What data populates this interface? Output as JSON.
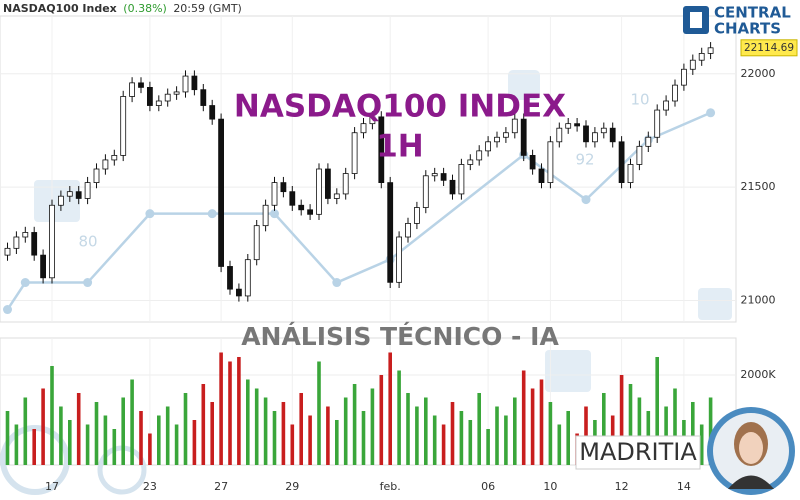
{
  "header": {
    "title": "NASDAQ100 Index",
    "change": "(0.38%)",
    "time": "20:59 (GMT)"
  },
  "brand": {
    "line1": "CENTRAL",
    "line2": "CHARTS"
  },
  "watermark": {
    "title": "NASDAQ100 INDEX",
    "timeframe": "1H",
    "subtitle": "ANÁLISIS TÉCNICO - IA"
  },
  "author": "MADRITIA",
  "chart_data": {
    "type": "candlestick",
    "categories": [
      null,
      null,
      null,
      null,
      null,
      "17",
      null,
      null,
      null,
      null,
      null,
      null,
      null,
      null,
      null,
      null,
      "23",
      null,
      null,
      null,
      null,
      null,
      null,
      null,
      "27",
      null,
      null,
      null,
      null,
      null,
      null,
      null,
      "29",
      null,
      null,
      null,
      null,
      null,
      null,
      null,
      null,
      null,
      null,
      "feb.",
      null,
      null,
      null,
      null,
      null,
      null,
      null,
      null,
      null,
      null,
      "06",
      null,
      null,
      null,
      null,
      null,
      null,
      "10",
      null,
      null,
      null,
      null,
      null,
      null,
      null,
      "12",
      null,
      null,
      null,
      null,
      null,
      null,
      "14",
      null,
      null,
      null
    ],
    "open": [
      21200,
      21230,
      21280,
      21300,
      21200,
      21100,
      21420,
      21460,
      21480,
      21450,
      21520,
      21580,
      21620,
      21640,
      21900,
      21960,
      21940,
      21860,
      21880,
      21910,
      21920,
      21990,
      21930,
      21860,
      21800,
      21150,
      21050,
      21020,
      21180,
      21330,
      21420,
      21520,
      21480,
      21420,
      21400,
      21380,
      21580,
      21450,
      21470,
      21560,
      21740,
      21780,
      21810,
      21520,
      21080,
      21280,
      21340,
      21410,
      21550,
      21560,
      21530,
      21470,
      21600,
      21620,
      21660,
      21700,
      21720,
      21740,
      21800,
      21640,
      21580,
      21520,
      21700,
      21760,
      21780,
      21770,
      21700,
      21740,
      21760,
      21700,
      21520,
      21600,
      21680,
      21720,
      21840,
      21880,
      21950,
      22020,
      22060,
      22090
    ],
    "high": [
      21255,
      21305,
      21325,
      21325,
      21225,
      21445,
      21485,
      21505,
      21505,
      21545,
      21605,
      21645,
      21665,
      21925,
      21985,
      21985,
      21965,
      21905,
      21935,
      21945,
      22015,
      22015,
      21955,
      21885,
      21825,
      21175,
      21075,
      21205,
      21355,
      21445,
      21545,
      21545,
      21505,
      21445,
      21425,
      21605,
      21605,
      21495,
      21585,
      21765,
      21805,
      21835,
      21835,
      21545,
      21305,
      21365,
      21435,
      21575,
      21585,
      21585,
      21555,
      21625,
      21645,
      21685,
      21725,
      21745,
      21765,
      21825,
      21825,
      21665,
      21605,
      21725,
      21785,
      21805,
      21805,
      21795,
      21765,
      21785,
      21785,
      21725,
      21625,
      21705,
      21745,
      21865,
      21905,
      21975,
      22045,
      22085,
      22115,
      22140
    ],
    "low": [
      21175,
      21205,
      21255,
      21175,
      21075,
      21075,
      21395,
      21435,
      21425,
      21425,
      21495,
      21555,
      21595,
      21615,
      21875,
      21915,
      21835,
      21835,
      21855,
      21885,
      21895,
      21905,
      21835,
      21775,
      21125,
      21025,
      20995,
      20995,
      21155,
      21305,
      21395,
      21455,
      21395,
      21375,
      21355,
      21355,
      21425,
      21425,
      21445,
      21535,
      21715,
      21755,
      21495,
      21055,
      21055,
      21255,
      21315,
      21385,
      21525,
      21505,
      21445,
      21445,
      21575,
      21595,
      21635,
      21675,
      21695,
      21715,
      21615,
      21555,
      21495,
      21495,
      21675,
      21735,
      21745,
      21675,
      21675,
      21715,
      21675,
      21495,
      21495,
      21575,
      21655,
      21695,
      21815,
      21855,
      21925,
      21995,
      22035,
      22065
    ],
    "close": [
      21230,
      21280,
      21300,
      21200,
      21100,
      21420,
      21460,
      21480,
      21450,
      21520,
      21580,
      21620,
      21640,
      21900,
      21960,
      21940,
      21860,
      21880,
      21910,
      21920,
      21990,
      21930,
      21860,
      21800,
      21150,
      21050,
      21020,
      21180,
      21330,
      21420,
      21520,
      21480,
      21420,
      21400,
      21380,
      21580,
      21450,
      21470,
      21560,
      21740,
      21780,
      21810,
      21520,
      21080,
      21280,
      21340,
      21410,
      21550,
      21560,
      21530,
      21470,
      21600,
      21620,
      21660,
      21700,
      21720,
      21740,
      21800,
      21640,
      21580,
      21520,
      21700,
      21760,
      21780,
      21770,
      21700,
      21740,
      21760,
      21700,
      21520,
      21600,
      21680,
      21720,
      21840,
      21880,
      21950,
      22020,
      22060,
      22090,
      22114.69
    ],
    "up_color": "#ffffff",
    "down_color": "#111111",
    "ylim": [
      20905,
      22255
    ],
    "yticks": [
      21000,
      21500,
      22000
    ],
    "grid": true,
    "last_price": 22114.69,
    "volume": {
      "values": [
        1200,
        900,
        1500,
        800,
        1700,
        2200,
        1300,
        1000,
        1600,
        900,
        1400,
        1100,
        800,
        1500,
        1900,
        1200,
        700,
        1100,
        1300,
        900,
        1600,
        1000,
        1800,
        1400,
        2500,
        2300,
        2400,
        1900,
        1700,
        1500,
        1200,
        1400,
        900,
        1600,
        1100,
        2300,
        1300,
        1000,
        1500,
        1800,
        1200,
        1700,
        2000,
        2500,
        2100,
        1600,
        1300,
        1500,
        1100,
        900,
        1400,
        1200,
        1000,
        1600,
        800,
        1300,
        1100,
        1500,
        2100,
        1700,
        1900,
        1400,
        900,
        1200,
        700,
        1300,
        1000,
        1600,
        1100,
        2000,
        1800,
        1500,
        1200,
        2400,
        1300,
        1700,
        1000,
        1400,
        900,
        1500
      ],
      "ylim": [
        0,
        2822
      ],
      "yticks": [
        {
          "value": 2000,
          "label": "2000K"
        }
      ],
      "up_color": "#3aa63a",
      "down_color": "#c81e1e"
    },
    "overlay": {
      "x": [
        0,
        2,
        9,
        16,
        23,
        30,
        37,
        43,
        58,
        65,
        72,
        79
      ],
      "values": [
        20960,
        21079,
        21079,
        21383,
        21383,
        21383,
        21079,
        21181,
        21643,
        21445,
        21709,
        21828
      ],
      "color": "#b9d3e6"
    },
    "annotations": [
      "80",
      "92",
      "10"
    ]
  }
}
